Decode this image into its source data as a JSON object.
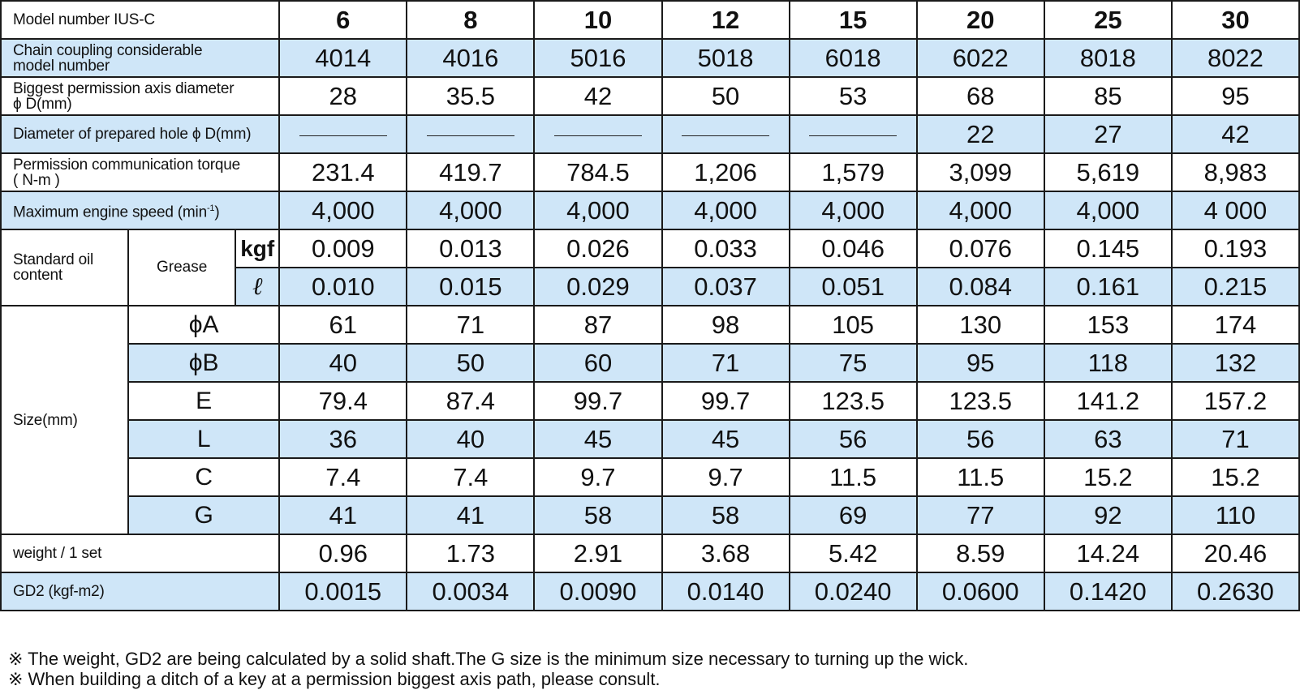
{
  "header": {
    "label": "Model number IUS-C",
    "models": [
      "6",
      "8",
      "10",
      "12",
      "15",
      "20",
      "25",
      "30"
    ]
  },
  "rows": {
    "chain": {
      "label_line1": "Chain coupling considerable",
      "label_line2": "model number",
      "values": [
        "4014",
        "4016",
        "5016",
        "5018",
        "6018",
        "6022",
        "8018",
        "8022"
      ]
    },
    "bore_max": {
      "label_line1": "Biggest permission axis diameter",
      "label_line2": "ϕ D(mm)",
      "values": [
        "28",
        "35.5",
        "42",
        "50",
        "53",
        "68",
        "85",
        "95"
      ]
    },
    "prepared_hole": {
      "label": "Diameter of prepared hole ϕ D(mm)",
      "values": [
        "",
        "",
        "",
        "",
        "",
        "22",
        "27",
        "42"
      ]
    },
    "torque": {
      "label_line1": "Permission communication torque",
      "label_line2": "( N-m )",
      "values": [
        "231.4",
        "419.7",
        "784.5",
        "1,206",
        "1,579",
        "3,099",
        "5,619",
        "8,983"
      ]
    },
    "speed": {
      "label": "Maximum engine speed (min",
      "label_sup": "-1",
      "label_end": ")",
      "values": [
        "4,000",
        "4,000",
        "4,000",
        "4,000",
        "4,000",
        "4,000",
        "4,000",
        "4 000"
      ]
    },
    "oil": {
      "label_line1": "Standard oil",
      "label_line2": "content",
      "sub_label": "Grease",
      "kgf": {
        "unit": "kgf",
        "values": [
          "0.009",
          "0.013",
          "0.026",
          "0.033",
          "0.046",
          "0.076",
          "0.145",
          "0.193"
        ]
      },
      "litre": {
        "unit": "ℓ",
        "values": [
          "0.010",
          "0.015",
          "0.029",
          "0.037",
          "0.051",
          "0.084",
          "0.161",
          "0.215"
        ]
      }
    },
    "size": {
      "label": "Size(mm)",
      "dims": [
        {
          "name": "ϕA",
          "values": [
            "61",
            "71",
            "87",
            "98",
            "105",
            "130",
            "153",
            "174"
          ]
        },
        {
          "name": "ϕB",
          "values": [
            "40",
            "50",
            "60",
            "71",
            "75",
            "95",
            "118",
            "132"
          ]
        },
        {
          "name": "E",
          "values": [
            "79.4",
            "87.4",
            "99.7",
            "99.7",
            "123.5",
            "123.5",
            "141.2",
            "157.2"
          ]
        },
        {
          "name": "L",
          "values": [
            "36",
            "40",
            "45",
            "45",
            "56",
            "56",
            "63",
            "71"
          ]
        },
        {
          "name": "C",
          "values": [
            "7.4",
            "7.4",
            "9.7",
            "9.7",
            "11.5",
            "11.5",
            "15.2",
            "15.2"
          ]
        },
        {
          "name": "G",
          "values": [
            "41",
            "41",
            "58",
            "58",
            "69",
            "77",
            "92",
            "110"
          ]
        }
      ]
    },
    "weight": {
      "label": "weight / 1 set",
      "values": [
        "0.96",
        "1.73",
        "2.91",
        "3.68",
        "5.42",
        "8.59",
        "14.24",
        "20.46"
      ]
    },
    "gd2": {
      "label": "GD2 (kgf-m2)",
      "values": [
        "0.0015",
        "0.0034",
        "0.0090",
        "0.0140",
        "0.0240",
        "0.0600",
        "0.1420",
        "0.2630"
      ]
    }
  },
  "notes": [
    "※ The weight, GD2 are being calculated by a solid shaft.The G size is the minimum size necessary to turning up the wick.",
    "※ When building a ditch of a key at a permission biggest axis path, please consult."
  ],
  "colors": {
    "row_highlight": "#cfe6f8",
    "border": "#1a1a1a"
  }
}
